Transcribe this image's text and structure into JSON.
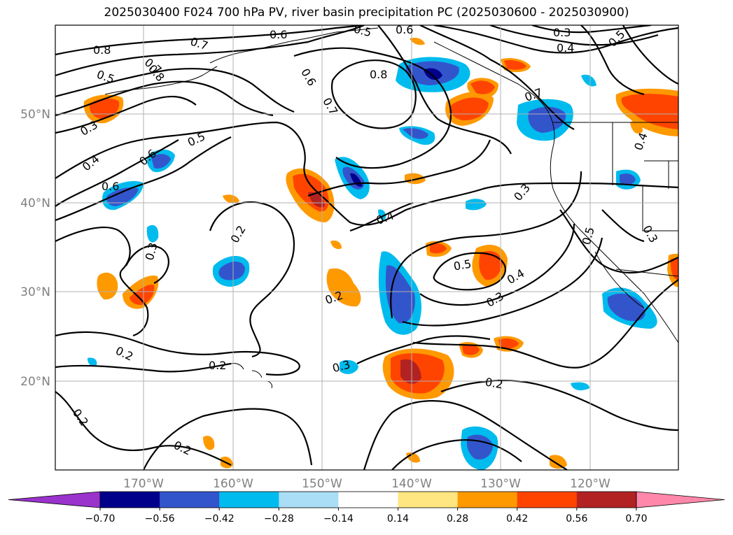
{
  "title": "2025030400 F024 700 hPa PV, river basin precipitation PC (2025030600 - 2025030900)",
  "lat_ticks": [
    "50°N",
    "40°N",
    "30°N",
    "20°N"
  ],
  "lon_ticks": [
    "170°W",
    "160°W",
    "150°W",
    "140°W",
    "130°W",
    "120°W"
  ],
  "colorbar": {
    "labels": [
      "−0.70",
      "−0.56",
      "−0.42",
      "−0.28",
      "−0.14",
      "0.14",
      "0.28",
      "0.42",
      "0.56",
      "0.70"
    ],
    "colors": [
      "#9933cc",
      "#00008b",
      "#3355cc",
      "#00bbee",
      "#aaddf6",
      "#ffffff",
      "#ffe680",
      "#ff9900",
      "#ff4400",
      "#b22222",
      "#ff88aa"
    ]
  },
  "contour_labels": [
    "0.8",
    "0.7",
    "0.6",
    "0.5",
    "0.7",
    "0.3",
    "0.4",
    "0.5",
    "0.8",
    "0.5",
    "0.6",
    "0.7",
    "0.8",
    "0.6",
    "0.3",
    "0.4",
    "0.6",
    "0.5",
    "0.6",
    "0.4",
    "0.7",
    "0.3",
    "0.2",
    "0.3",
    "0.2",
    "0.4",
    "0.5",
    "0.4",
    "0.3",
    "0.5",
    "0.3",
    "0.2",
    "0.2",
    "0.3",
    "0.2",
    "0.2",
    "0.2"
  ],
  "precip_colors": {
    "blue_strong": "#3355cc",
    "blue_dark": "#00008b",
    "blue_light": "#00bbee",
    "orange": "#ff9900",
    "red": "#ff4400",
    "darkred": "#b22222",
    "yellow": "#ffe680"
  }
}
